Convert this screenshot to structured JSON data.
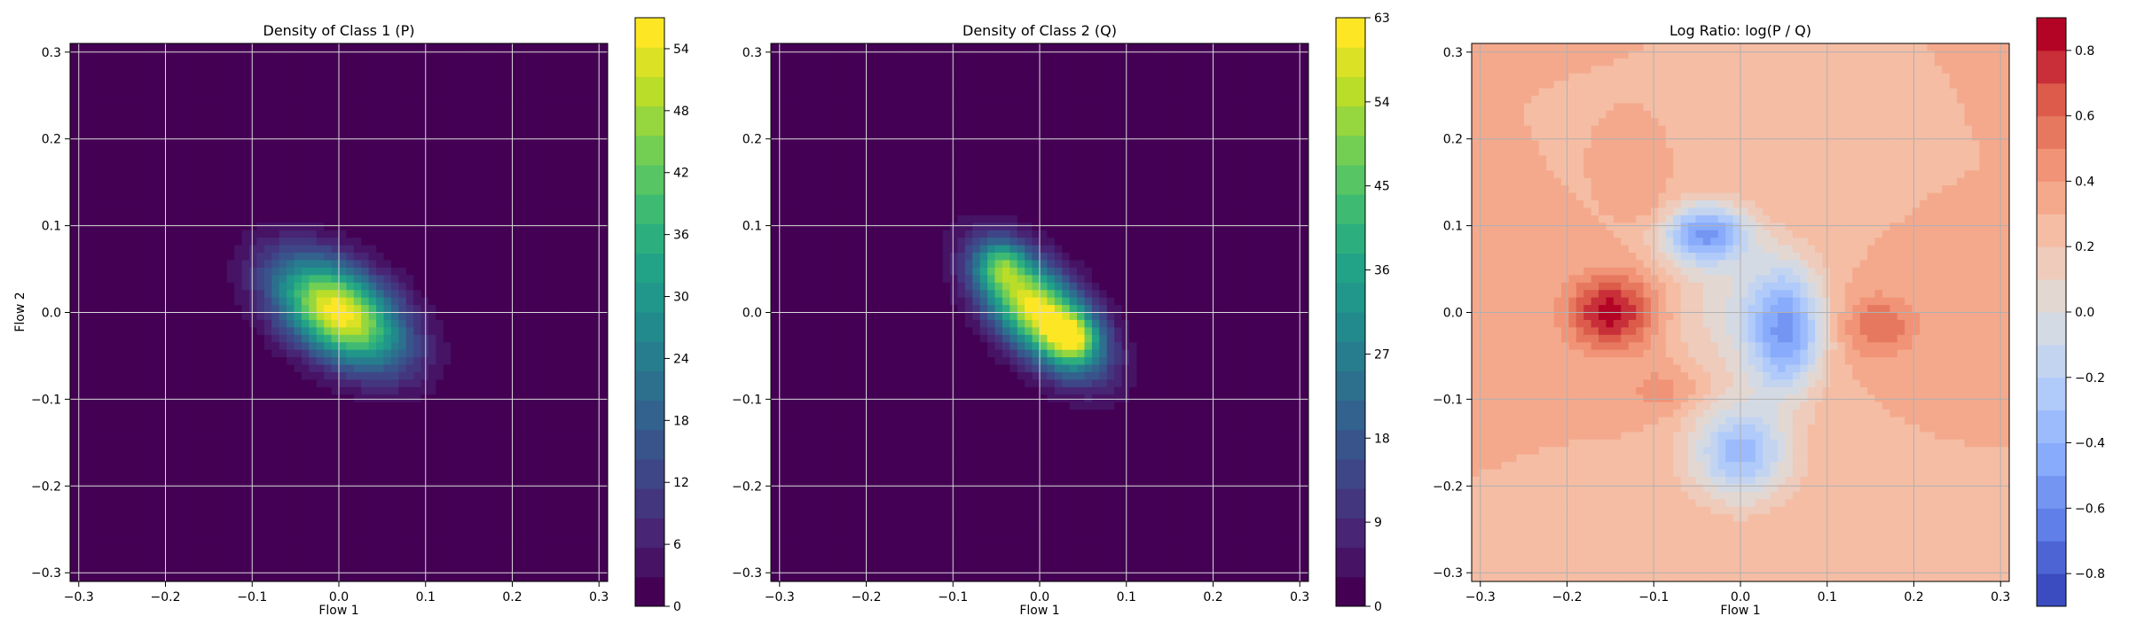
{
  "chart_data": [
    {
      "type": "heatmap",
      "title": "Density of Class 1 (P)",
      "xlabel": "Flow 1",
      "ylabel": "Flow 2",
      "xlim": [
        -0.31,
        0.31
      ],
      "ylim": [
        -0.31,
        0.31
      ],
      "xticks": [
        "−0.3",
        "−0.2",
        "−0.1",
        "0.0",
        "0.1",
        "0.2",
        "0.3"
      ],
      "yticks": [
        "−0.3",
        "−0.2",
        "−0.1",
        "0.0",
        "0.1",
        "0.2",
        "0.3"
      ],
      "grid": true,
      "colormap": "viridis",
      "density_components": [
        {
          "x": 0.0,
          "y": 0.0,
          "sx": 0.058,
          "sy": 0.034,
          "angle_deg": -35,
          "weight": 1.0
        }
      ],
      "colorbar": {
        "min": 0,
        "max": 57,
        "ticks": [
          "0",
          "6",
          "12",
          "18",
          "24",
          "30",
          "36",
          "42",
          "48",
          "54"
        ]
      }
    },
    {
      "type": "heatmap",
      "title": "Density of Class 2 (Q)",
      "xlabel": "Flow 1",
      "ylabel": "",
      "xlim": [
        -0.31,
        0.31
      ],
      "ylim": [
        -0.31,
        0.31
      ],
      "xticks": [
        "−0.3",
        "−0.2",
        "−0.1",
        "0.0",
        "0.1",
        "0.2",
        "0.3"
      ],
      "yticks": [
        "−0.3",
        "−0.2",
        "−0.1",
        "0.0",
        "0.1",
        "0.2",
        "0.3"
      ],
      "grid": true,
      "colormap": "viridis",
      "density_components": [
        {
          "x": 0.0,
          "y": 0.0,
          "sx": 0.058,
          "sy": 0.03,
          "angle_deg": -45,
          "weight": 1.0
        },
        {
          "x": -0.045,
          "y": 0.055,
          "sx": 0.02,
          "sy": 0.02,
          "angle_deg": 0,
          "weight": 0.35
        },
        {
          "x": 0.04,
          "y": -0.03,
          "sx": 0.02,
          "sy": 0.02,
          "angle_deg": 0,
          "weight": 0.4
        }
      ],
      "colorbar": {
        "min": 0,
        "max": 63,
        "ticks": [
          "0",
          "9",
          "18",
          "27",
          "36",
          "45",
          "54",
          "63"
        ]
      }
    },
    {
      "type": "heatmap",
      "title": "Log Ratio: log(P / Q)",
      "xlabel": "Flow 1",
      "ylabel": "",
      "xlim": [
        -0.31,
        0.31
      ],
      "ylim": [
        -0.31,
        0.31
      ],
      "xticks": [
        "−0.3",
        "−0.2",
        "−0.1",
        "0.0",
        "0.1",
        "0.2",
        "0.3"
      ],
      "yticks": [
        "−0.3",
        "−0.2",
        "−0.1",
        "0.0",
        "0.1",
        "0.2",
        "0.3"
      ],
      "grid": true,
      "colormap": "coolwarm",
      "ratio_features": [
        {
          "x": -0.15,
          "y": 0.0,
          "sx": 0.035,
          "sy": 0.03,
          "value": 0.85
        },
        {
          "x": 0.16,
          "y": -0.015,
          "sx": 0.03,
          "sy": 0.025,
          "value": 0.6
        },
        {
          "x": -0.09,
          "y": -0.09,
          "sx": 0.03,
          "sy": 0.02,
          "value": 0.45
        },
        {
          "x": -0.1,
          "y": 0.12,
          "sx": 0.02,
          "sy": 0.02,
          "value": 0.4
        },
        {
          "x": -0.04,
          "y": 0.09,
          "sx": 0.035,
          "sy": 0.025,
          "value": -0.55
        },
        {
          "x": 0.05,
          "y": -0.02,
          "sx": 0.03,
          "sy": 0.05,
          "value": -0.55
        },
        {
          "x": 0.0,
          "y": -0.16,
          "sx": 0.04,
          "sy": 0.04,
          "value": -0.35
        }
      ],
      "ratio_background": 0.3,
      "colorbar": {
        "min": -0.9,
        "max": 0.9,
        "ticks": [
          "−0.8",
          "−0.6",
          "−0.4",
          "−0.2",
          "0.0",
          "0.2",
          "0.4",
          "0.6",
          "0.8"
        ]
      }
    }
  ]
}
